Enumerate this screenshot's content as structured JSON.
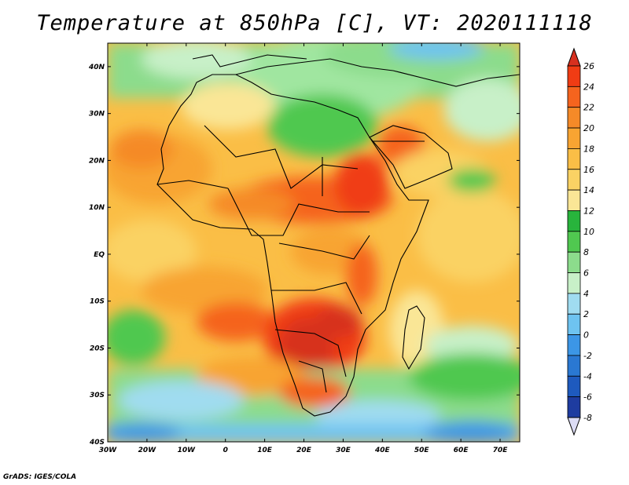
{
  "title": "Temperature at 850hPa [C], VT: 2020111118",
  "credit": "GrADS: IGES/COLA",
  "map": {
    "projection": "latlon",
    "lon_range": [
      -30,
      75
    ],
    "lat_range": [
      -40,
      45
    ],
    "lat_labels": [
      "40N",
      "30N",
      "20N",
      "10N",
      "EQ",
      "10S",
      "20S",
      "30S",
      "40S"
    ],
    "lon_labels": [
      "30W",
      "20W",
      "10W",
      "0",
      "10E",
      "20E",
      "30E",
      "40E",
      "50E",
      "60E",
      "70E"
    ]
  },
  "colorbar": {
    "labels": [
      "26",
      "24",
      "22",
      "20",
      "18",
      "16",
      "14",
      "12",
      "10",
      "8",
      "6",
      "4",
      "2",
      "0",
      "-2",
      "-4",
      "-6",
      "-8"
    ],
    "colors": [
      "#d7301f",
      "#f03c14",
      "#f5641e",
      "#f58a28",
      "#f8a432",
      "#fabe46",
      "#fad264",
      "#fae696",
      "#28b43c",
      "#50c850",
      "#8cdc8c",
      "#c8f0c8",
      "#a0dcf0",
      "#6ec3f0",
      "#3c96e6",
      "#2a78d2",
      "#1e5abe",
      "#1e3ca0",
      "#14288c"
    ]
  },
  "regions": {
    "ocean_south": "Southern Ocean cold band",
    "north_africa": "Sahara moderate temperature",
    "hot_core": "Southern Africa hot core"
  }
}
